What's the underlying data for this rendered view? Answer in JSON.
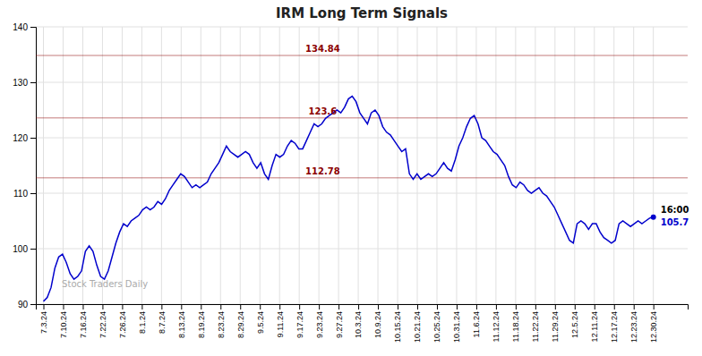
{
  "chart_data": {
    "type": "line",
    "title": "IRM Long Term Signals",
    "color": "#0000cc",
    "grid": true,
    "xlim": [
      -2,
      169
    ],
    "xticks": [
      {
        "value": 0,
        "label": "7.3.24"
      },
      {
        "value": 5.1613,
        "label": "7.10.24"
      },
      {
        "value": 10.3226,
        "label": "7.16.24"
      },
      {
        "value": 15.4839,
        "label": "7.22.24"
      },
      {
        "value": 20.6452,
        "label": "7.26.24"
      },
      {
        "value": 25.8065,
        "label": "8.1.24"
      },
      {
        "value": 30.9677,
        "label": "8.7.24"
      },
      {
        "value": 36.129,
        "label": "8.13.24"
      },
      {
        "value": 41.2903,
        "label": "8.19.24"
      },
      {
        "value": 46.4516,
        "label": "8.23.24"
      },
      {
        "value": 51.6129,
        "label": "8.29.24"
      },
      {
        "value": 56.7742,
        "label": "9.5.24"
      },
      {
        "value": 61.9355,
        "label": "9.11.24"
      },
      {
        "value": 67.0968,
        "label": "9.17.24"
      },
      {
        "value": 72.2581,
        "label": "9.23.24"
      },
      {
        "value": 77.4194,
        "label": "9.27.24"
      },
      {
        "value": 82.5806,
        "label": "10.3.24"
      },
      {
        "value": 87.7419,
        "label": "10.9.24"
      },
      {
        "value": 92.9032,
        "label": "10.15.24"
      },
      {
        "value": 98.0645,
        "label": "10.21.24"
      },
      {
        "value": 103.2258,
        "label": "10.25.24"
      },
      {
        "value": 108.3871,
        "label": "10.31.24"
      },
      {
        "value": 113.5484,
        "label": "11.6.24"
      },
      {
        "value": 118.7097,
        "label": "11.12.24"
      },
      {
        "value": 123.871,
        "label": "11.18.24"
      },
      {
        "value": 129.0323,
        "label": "11.22.24"
      },
      {
        "value": 134.1935,
        "label": "11.29.24"
      },
      {
        "value": 139.3548,
        "label": "12.5.24"
      },
      {
        "value": 144.5161,
        "label": "12.11.24"
      },
      {
        "value": 149.6774,
        "label": "12.17.24"
      },
      {
        "value": 154.8387,
        "label": "12.23.24"
      },
      {
        "value": 160,
        "label": "12.30.24"
      }
    ],
    "ylim": [
      90,
      140
    ],
    "yticks": [
      90,
      100,
      110,
      120,
      130,
      140
    ],
    "hlines": [
      {
        "value": 134.84,
        "label": "134.84",
        "color": "#8b0000"
      },
      {
        "value": 123.6,
        "label": "123.6",
        "color": "#8b0000"
      },
      {
        "value": 112.78,
        "label": "112.78",
        "color": "#8b0000"
      }
    ],
    "annotations": [
      {
        "text": "16:00",
        "color": "#000000"
      },
      {
        "text": "105.7",
        "color": "#0000cc"
      },
      {
        "text": "Stock Traders Daily"
      }
    ],
    "values": [
      90.5,
      91.2,
      93.0,
      96.5,
      98.5,
      99.0,
      97.5,
      95.5,
      94.5,
      95.0,
      96.0,
      99.5,
      100.5,
      99.5,
      97.0,
      95.0,
      94.5,
      96.0,
      98.5,
      101.0,
      103.0,
      104.5,
      104.0,
      105.0,
      105.5,
      106.0,
      107.0,
      107.5,
      107.0,
      107.5,
      108.5,
      108.0,
      109.0,
      110.5,
      111.5,
      112.5,
      113.5,
      113.0,
      112.0,
      111.0,
      111.5,
      111.0,
      111.5,
      112.0,
      113.5,
      114.5,
      115.5,
      117.0,
      118.5,
      117.5,
      117.0,
      116.5,
      117.0,
      117.5,
      117.0,
      115.5,
      114.5,
      115.5,
      113.5,
      112.5,
      115.0,
      117.0,
      116.5,
      117.0,
      118.5,
      119.5,
      119.0,
      118.0,
      118.0,
      119.5,
      121.0,
      122.5,
      122.0,
      122.5,
      123.5,
      124.0,
      124.5,
      125.0,
      124.5,
      125.5,
      127.0,
      127.5,
      126.5,
      124.5,
      123.5,
      122.5,
      124.5,
      125.0,
      124.0,
      122.0,
      121.0,
      120.5,
      119.5,
      118.5,
      117.5,
      118.0,
      113.5,
      112.5,
      113.5,
      112.5,
      113.0,
      113.5,
      113.0,
      113.5,
      114.5,
      115.5,
      114.5,
      114.0,
      116.0,
      118.5,
      120.0,
      122.0,
      123.5,
      124.0,
      122.5,
      120.0,
      119.5,
      118.5,
      117.5,
      117.0,
      116.0,
      115.0,
      113.0,
      111.5,
      111.0,
      112.0,
      111.5,
      110.5,
      110.0,
      110.5,
      111.0,
      110.0,
      109.5,
      108.5,
      107.5,
      106.0,
      104.5,
      103.0,
      101.5,
      101.0,
      104.5,
      105.0,
      104.5,
      103.5,
      104.5,
      104.5,
      103.0,
      102.0,
      101.5,
      101.0,
      101.5,
      104.5,
      105.0,
      104.5,
      104.0,
      104.5,
      105.0,
      104.5,
      105.0,
      105.5,
      105.7
    ]
  }
}
